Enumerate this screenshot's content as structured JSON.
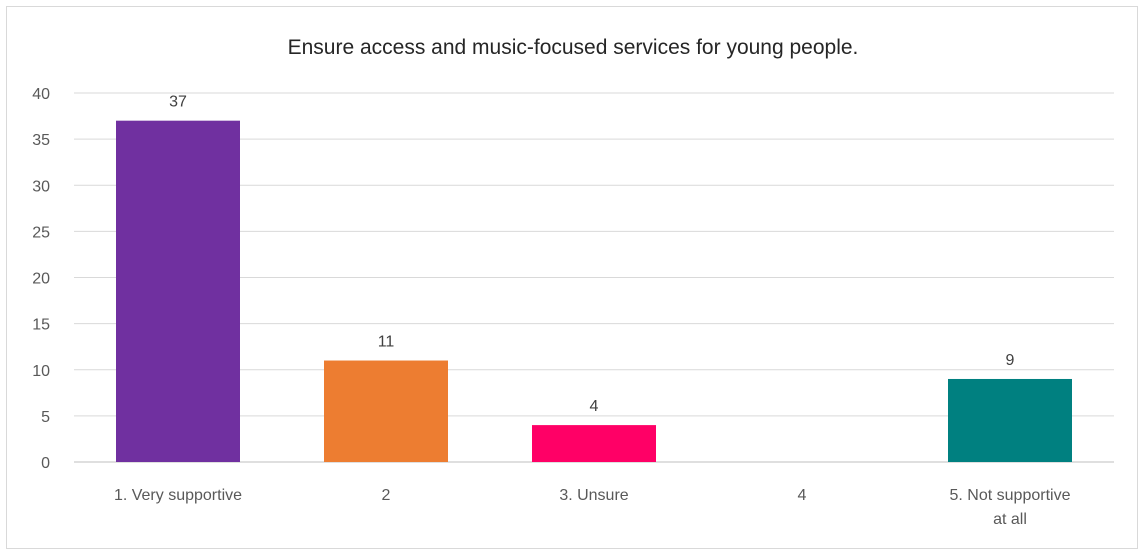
{
  "chart_data": {
    "type": "bar",
    "title": "Ensure access and music-focused services for young people.",
    "categories": [
      "1. Very supportive",
      "2",
      "3. Unsure",
      "4",
      "5. Not supportive at all"
    ],
    "values": [
      37,
      11,
      4,
      0,
      9
    ],
    "data_labels": [
      "37",
      "11",
      "4",
      "",
      "9"
    ],
    "bar_colors": [
      "#7030a0",
      "#ed7d31",
      "#ff0066",
      "#a5a5a5",
      "#008080"
    ],
    "ylim": [
      0,
      40
    ],
    "y_ticks": [
      0,
      5,
      10,
      15,
      20,
      25,
      30,
      35,
      40
    ],
    "grid": true,
    "xlabel": "",
    "ylabel": ""
  }
}
